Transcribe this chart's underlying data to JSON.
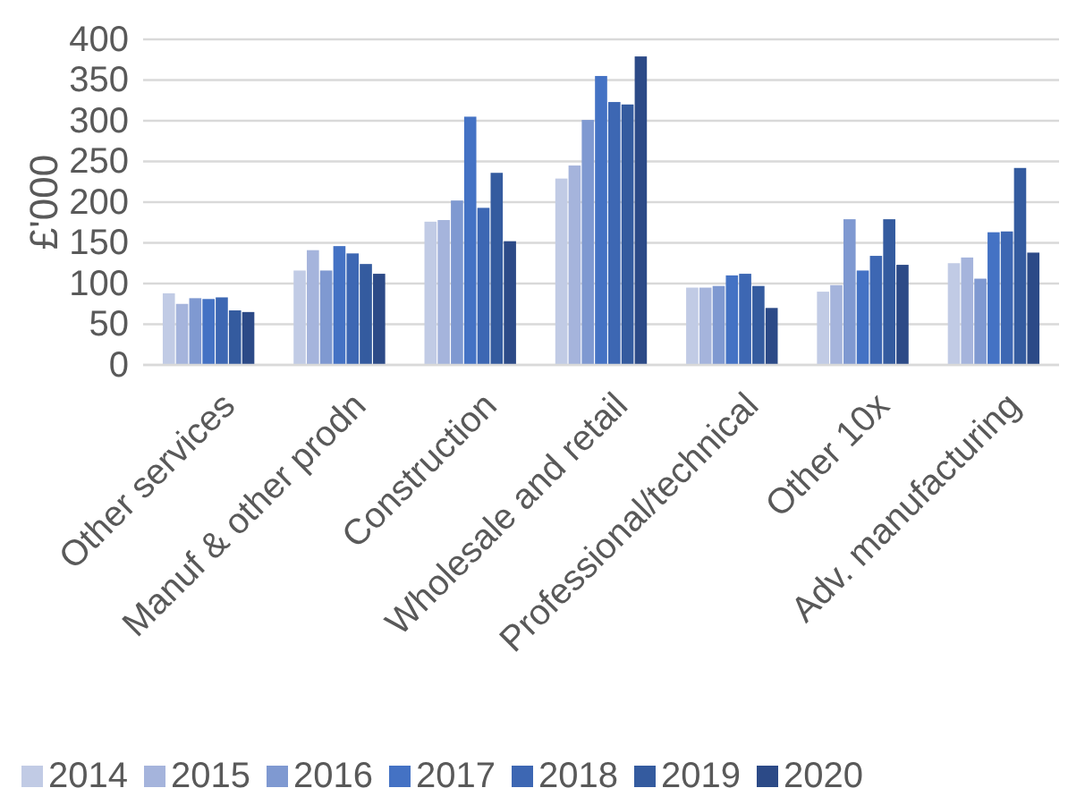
{
  "chart_data": {
    "type": "bar",
    "ylabel": "£'000",
    "categories": [
      "Other services",
      "Manuf & other prodn",
      "Construction",
      "Wholesale and retail",
      "Professional/technical",
      "Other 10x",
      "Adv. manufacturing"
    ],
    "series": [
      {
        "name": "2014",
        "color": "#c1cbe5",
        "values": [
          88,
          116,
          176,
          229,
          95,
          90,
          125
        ]
      },
      {
        "name": "2015",
        "color": "#a5b4dc",
        "values": [
          75,
          141,
          178,
          245,
          95,
          98,
          132
        ]
      },
      {
        "name": "2016",
        "color": "#7f99d1",
        "values": [
          82,
          116,
          202,
          301,
          97,
          179,
          106
        ]
      },
      {
        "name": "2017",
        "color": "#4472c4",
        "values": [
          81,
          146,
          305,
          355,
          110,
          116,
          163
        ]
      },
      {
        "name": "2018",
        "color": "#3d67b3",
        "values": [
          83,
          137,
          193,
          323,
          112,
          134,
          164
        ]
      },
      {
        "name": "2019",
        "color": "#345b9f",
        "values": [
          67,
          124,
          236,
          320,
          97,
          179,
          242
        ]
      },
      {
        "name": "2020",
        "color": "#2c4a87",
        "values": [
          65,
          112,
          152,
          379,
          70,
          123,
          138
        ]
      }
    ],
    "ylim": [
      0,
      400
    ],
    "yticks": [
      0,
      50,
      100,
      150,
      200,
      250,
      300,
      350,
      400
    ],
    "grid": "y",
    "legend": "bottom"
  }
}
